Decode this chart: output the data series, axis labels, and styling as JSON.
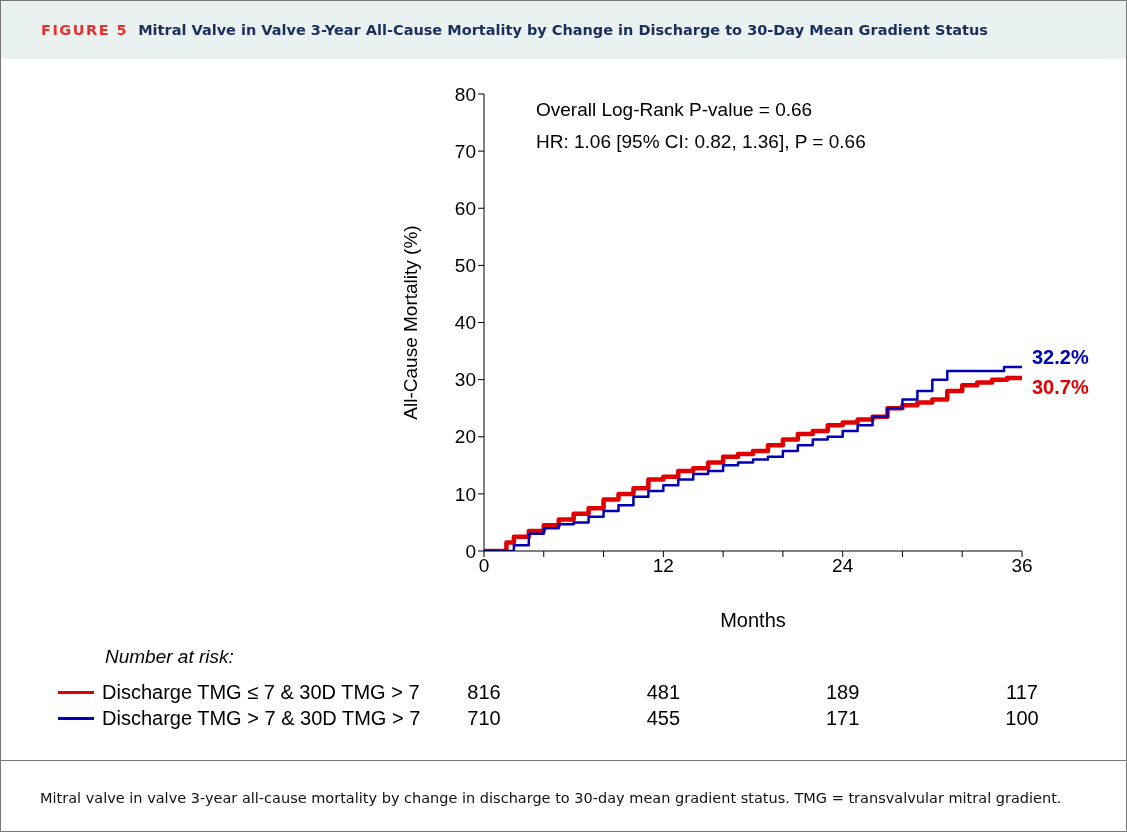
{
  "chart_data": {
    "type": "step",
    "subtitle": "FIGURE 5",
    "title": "Mitral Valve in Valve 3-Year All-Cause Mortality by Change in Discharge to 30-Day Mean Gradient Status",
    "xlabel": "Months",
    "ylabel": "All-Cause Mortality (%)",
    "xlim": [
      0,
      36
    ],
    "xticks": [
      0,
      {
        "value": 4,
        "label": null
      },
      {
        "value": 8,
        "label": null
      },
      12,
      {
        "value": 16,
        "label": null
      },
      {
        "value": 20,
        "label": null
      },
      24,
      {
        "value": 28,
        "label": null
      },
      {
        "value": 32,
        "label": null
      },
      36
    ],
    "ylim": [
      0,
      80
    ],
    "yticks": [
      0,
      10,
      20,
      30,
      40,
      50,
      60,
      70,
      80
    ],
    "grid": false,
    "legend": "bottom left",
    "marker": "none",
    "line_style": "solid",
    "series": [
      {
        "name": "Discharge TMG ≤ 7 & 30D TMG > 7",
        "color": "#e00000",
        "x": [
          0,
          1.1,
          1.5,
          2,
          3,
          4,
          5,
          6,
          7,
          8,
          9,
          10,
          11,
          12,
          13,
          14,
          15,
          16,
          17,
          18,
          19,
          20,
          21,
          22,
          23,
          24,
          25,
          26,
          27,
          28,
          29,
          30,
          31,
          32,
          33,
          34,
          35,
          36
        ],
        "values": [
          0,
          0,
          1.5,
          2.5,
          3.5,
          4.5,
          5.5,
          6.5,
          7.5,
          9,
          10,
          11,
          12.5,
          13,
          14,
          14.5,
          15.5,
          16.5,
          17,
          17.5,
          18.5,
          19.5,
          20.5,
          21,
          22,
          22.5,
          23,
          23.5,
          25,
          25.5,
          26,
          26.5,
          28,
          29,
          29.5,
          30,
          30.3,
          30.7
        ],
        "value_labels": [
          null,
          null,
          null,
          null,
          null,
          null,
          null,
          null,
          null,
          null,
          null,
          null,
          null,
          null,
          null,
          null,
          null,
          null,
          null,
          null,
          null,
          null,
          null,
          null,
          null,
          null,
          null,
          null,
          null,
          null,
          null,
          null,
          null,
          null,
          null,
          null,
          null,
          "30.7%"
        ]
      },
      {
        "name": "Discharge TMG > 7 & 30D TMG > 7",
        "color": "#0000b4",
        "x": [
          0,
          1.5,
          2,
          3,
          4,
          5,
          6,
          7,
          8,
          9,
          10,
          11,
          12,
          13,
          14,
          15,
          16,
          17,
          18,
          19,
          20,
          21,
          22,
          23,
          24,
          25,
          26,
          27,
          28,
          29,
          30,
          31,
          32,
          34,
          34.8,
          36
        ],
        "values": [
          0,
          0,
          1,
          3,
          4,
          4.7,
          5,
          6,
          7,
          8,
          9.5,
          10.5,
          11.5,
          12.5,
          13.5,
          14,
          15,
          15.5,
          16,
          16.5,
          17.5,
          18.5,
          19.5,
          20,
          21,
          22,
          23.5,
          25,
          26.5,
          28,
          30,
          31.5,
          31.5,
          31.5,
          32.2,
          32.2
        ],
        "value_labels": [
          null,
          null,
          null,
          null,
          null,
          null,
          null,
          null,
          null,
          null,
          null,
          null,
          null,
          null,
          null,
          null,
          null,
          null,
          null,
          null,
          null,
          null,
          null,
          null,
          null,
          null,
          null,
          null,
          null,
          null,
          null,
          null,
          null,
          null,
          null,
          "32.2%"
        ]
      }
    ],
    "annotations": [
      "Overall Log-Rank P-value = 0.66",
      "HR: 1.06 [95% CI: 0.82, 1.36], P = 0.66",
      "Number at risk:",
      "816",
      "481",
      "189",
      "117",
      "710",
      "455",
      "171",
      "100",
      "Mitral valve in valve 3-year all-cause mortality by change in discharge to 30-day mean gradient status. TMG = transvalvular mitral gradient."
    ]
  }
}
